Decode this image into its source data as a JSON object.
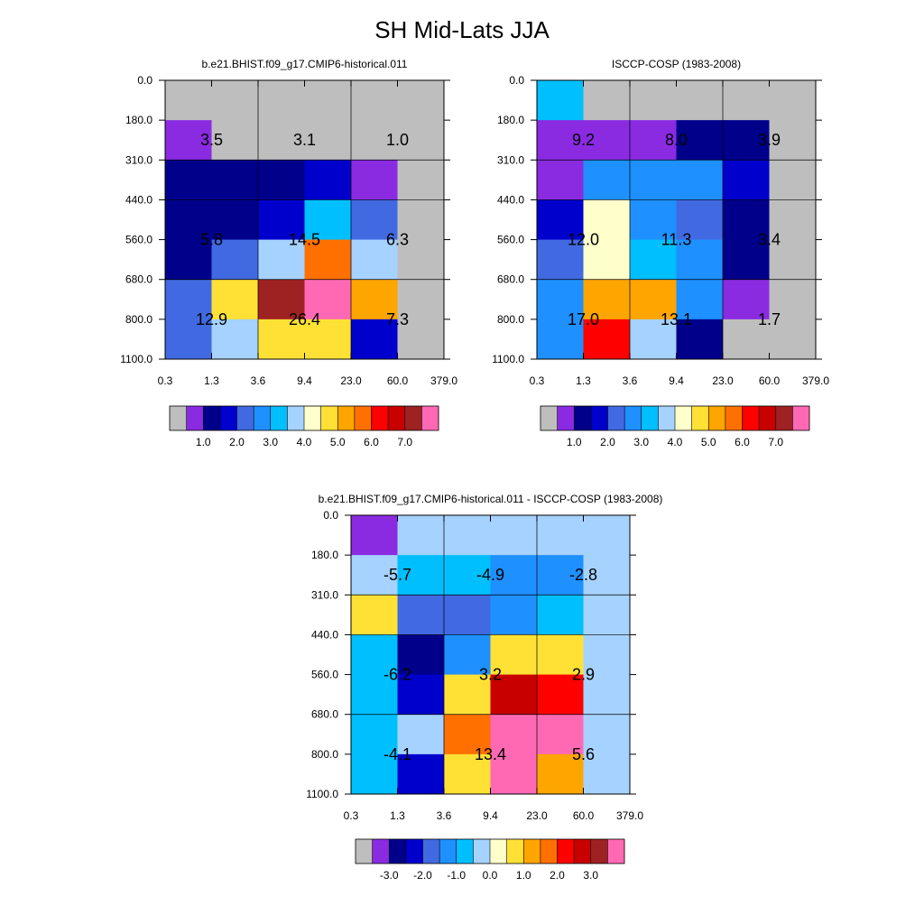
{
  "figure": {
    "title": "SH Mid-Lats JJA"
  },
  "chart_data": [
    {
      "type": "heatmap",
      "title": "b.e21.BHIST.f09_g17.CMIP6-historical.011",
      "x_ticks": [
        "0.3",
        "1.3",
        "3.6",
        "9.4",
        "23.0",
        "60.0",
        "379.0"
      ],
      "y_ticks": [
        "0.0",
        "180.0",
        "310.0",
        "440.0",
        "560.0",
        "680.0",
        "800.0",
        "1100.0"
      ],
      "cell_colors": [
        [
          "#BEBEBE",
          "#BEBEBE",
          "#BEBEBE",
          "#BEBEBE",
          "#BEBEBE",
          "#BEBEBE"
        ],
        [
          "#8A2BE2",
          "#BEBEBE",
          "#BEBEBE",
          "#BEBEBE",
          "#BEBEBE",
          "#BEBEBE"
        ],
        [
          "#00008B",
          "#00008B",
          "#00008B",
          "#0000CD",
          "#8A2BE2",
          "#BEBEBE"
        ],
        [
          "#00008B",
          "#00008B",
          "#0000CD",
          "#00BFFF",
          "#4169E1",
          "#BEBEBE"
        ],
        [
          "#00008B",
          "#4169E1",
          "#A6D2FF",
          "#FF7000",
          "#A6D2FF",
          "#BEBEBE"
        ],
        [
          "#4169E1",
          "#FFE135",
          "#9E2222",
          "#FF69B4",
          "#FFA500",
          "#BEBEBE"
        ],
        [
          "#4169E1",
          "#A6D2FF",
          "#FFE135",
          "#FFE135",
          "#0000CD",
          "#BEBEBE"
        ]
      ],
      "block_values": [
        [
          "3.5",
          "3.1",
          "1.0"
        ],
        [
          "5.8",
          "14.5",
          "6.3"
        ],
        [
          "12.9",
          "26.4",
          "7.3"
        ]
      ],
      "colorbar": {
        "colors": [
          "#BEBEBE",
          "#8A2BE2",
          "#00008B",
          "#0000CD",
          "#4169E1",
          "#1E90FF",
          "#00BFFF",
          "#A6D2FF",
          "#FFFFCC",
          "#FFE135",
          "#FFA500",
          "#FF7000",
          "#FF0000",
          "#C80000",
          "#9E2222",
          "#FF69B4"
        ],
        "labels": [
          "1.0",
          "2.0",
          "3.0",
          "4.0",
          "5.0",
          "6.0",
          "7.0"
        ]
      }
    },
    {
      "type": "heatmap",
      "title": "ISCCP-COSP (1983-2008)",
      "x_ticks": [
        "0.3",
        "1.3",
        "3.6",
        "9.4",
        "23.0",
        "60.0",
        "379.0"
      ],
      "y_ticks": [
        "0.0",
        "180.0",
        "310.0",
        "440.0",
        "560.0",
        "680.0",
        "800.0",
        "1100.0"
      ],
      "cell_colors": [
        [
          "#00BFFF",
          "#BEBEBE",
          "#BEBEBE",
          "#BEBEBE",
          "#BEBEBE",
          "#BEBEBE"
        ],
        [
          "#8A2BE2",
          "#8A2BE2",
          "#8A2BE2",
          "#00008B",
          "#00008B",
          "#BEBEBE"
        ],
        [
          "#8A2BE2",
          "#1E90FF",
          "#1E90FF",
          "#1E90FF",
          "#0000CD",
          "#BEBEBE"
        ],
        [
          "#0000CD",
          "#FFFFCC",
          "#1E90FF",
          "#4169E1",
          "#00008B",
          "#BEBEBE"
        ],
        [
          "#4169E1",
          "#FFFFCC",
          "#00BFFF",
          "#1E90FF",
          "#00008B",
          "#BEBEBE"
        ],
        [
          "#1E90FF",
          "#FFA500",
          "#FFA500",
          "#1E90FF",
          "#8A2BE2",
          "#BEBEBE"
        ],
        [
          "#1E90FF",
          "#FF0000",
          "#A6D2FF",
          "#00008B",
          "#BEBEBE",
          "#BEBEBE"
        ]
      ],
      "block_values": [
        [
          "9.2",
          "8.0",
          "3.9"
        ],
        [
          "12.0",
          "11.3",
          "3.4"
        ],
        [
          "17.0",
          "13.1",
          "1.7"
        ]
      ],
      "colorbar": {
        "colors": [
          "#BEBEBE",
          "#8A2BE2",
          "#00008B",
          "#0000CD",
          "#4169E1",
          "#1E90FF",
          "#00BFFF",
          "#A6D2FF",
          "#FFFFCC",
          "#FFE135",
          "#FFA500",
          "#FF7000",
          "#FF0000",
          "#C80000",
          "#9E2222",
          "#FF69B4"
        ],
        "labels": [
          "1.0",
          "2.0",
          "3.0",
          "4.0",
          "5.0",
          "6.0",
          "7.0"
        ]
      }
    },
    {
      "type": "heatmap",
      "title": "b.e21.BHIST.f09_g17.CMIP6-historical.011 - ISCCP-COSP (1983-2008)",
      "x_ticks": [
        "0.3",
        "1.3",
        "3.6",
        "9.4",
        "23.0",
        "60.0",
        "379.0"
      ],
      "y_ticks": [
        "0.0",
        "180.0",
        "310.0",
        "440.0",
        "560.0",
        "680.0",
        "800.0",
        "1100.0"
      ],
      "cell_colors": [
        [
          "#8A2BE2",
          "#A6D2FF",
          "#A6D2FF",
          "#A6D2FF",
          "#A6D2FF",
          "#A6D2FF"
        ],
        [
          "#A6D2FF",
          "#00BFFF",
          "#00BFFF",
          "#1E90FF",
          "#1E90FF",
          "#A6D2FF"
        ],
        [
          "#FFE135",
          "#4169E1",
          "#4169E1",
          "#1E90FF",
          "#00BFFF",
          "#A6D2FF"
        ],
        [
          "#00BFFF",
          "#00008B",
          "#1E90FF",
          "#FFE135",
          "#FFE135",
          "#A6D2FF"
        ],
        [
          "#00BFFF",
          "#0000CD",
          "#FFE135",
          "#C80000",
          "#FF0000",
          "#A6D2FF"
        ],
        [
          "#00BFFF",
          "#A6D2FF",
          "#FF7000",
          "#FF69B4",
          "#FF69B4",
          "#A6D2FF"
        ],
        [
          "#00BFFF",
          "#0000CD",
          "#FFE135",
          "#FF69B4",
          "#FFA500",
          "#A6D2FF"
        ]
      ],
      "block_values": [
        [
          "-5.7",
          "-4.9",
          "-2.8"
        ],
        [
          "-6.2",
          "3.2",
          "2.9"
        ],
        [
          "-4.1",
          "13.4",
          "5.6"
        ]
      ],
      "colorbar": {
        "colors": [
          "#BEBEBE",
          "#8A2BE2",
          "#00008B",
          "#0000CD",
          "#4169E1",
          "#1E90FF",
          "#00BFFF",
          "#A6D2FF",
          "#FFFFCC",
          "#FFE135",
          "#FFA500",
          "#FF7000",
          "#FF0000",
          "#C80000",
          "#9E2222",
          "#FF69B4"
        ],
        "labels": [
          "-3.0",
          "-2.0",
          "-1.0",
          "0.0",
          "1.0",
          "2.0",
          "3.0"
        ]
      }
    }
  ]
}
